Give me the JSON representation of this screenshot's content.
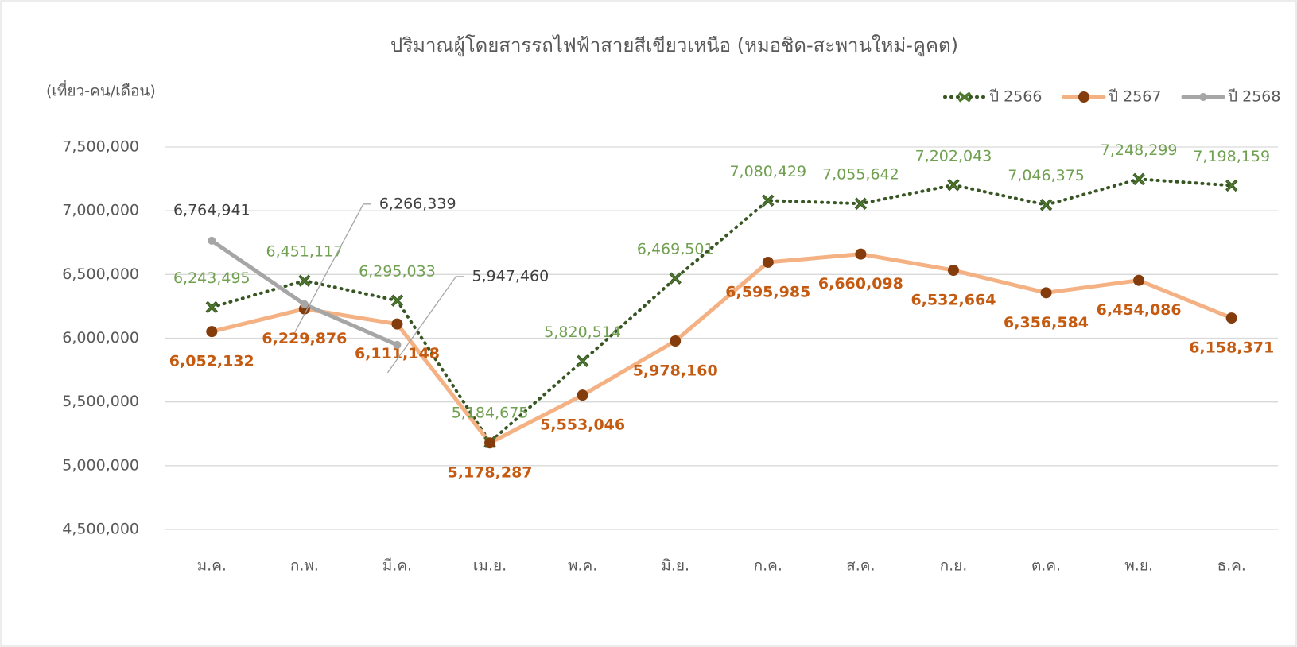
{
  "chart_data": {
    "type": "line",
    "title": "ปริมาณผู้โดยสารรถไฟฟ้าสายสีเขียวเหนือ (หมอชิด-สะพานใหม่-คูคต)",
    "y_label": "(เที่ยว-คน/เดือน)",
    "categories": [
      "ม.ค.",
      "ก.พ.",
      "มี.ค.",
      "เม.ย.",
      "พ.ค.",
      "มิ.ย.",
      "ก.ค.",
      "ส.ค.",
      "ก.ย.",
      "ต.ค.",
      "พ.ย.",
      "ธ.ค."
    ],
    "series": [
      {
        "name": "ปี 2566",
        "color": "#375623",
        "line_style": "dotted",
        "marker": "cross",
        "marker_color": "#4e7a2e",
        "label_color": "#70a050",
        "values": [
          6243495,
          6451117,
          6295033,
          5184675,
          5820514,
          6469501,
          7080429,
          7055642,
          7202043,
          7046375,
          7248299,
          7198159
        ],
        "value_labels": [
          "6,243,495",
          "6,451,117",
          "6,295,033",
          "5,184,675",
          "5,820,514",
          "6,469,501",
          "7,080,429",
          "7,055,642",
          "7,202,043",
          "7,046,375",
          "7,248,299",
          "7,198,159"
        ]
      },
      {
        "name": "ปี 2567",
        "color": "#f4b183",
        "line_style": "solid",
        "marker": "circle",
        "marker_color": "#843c0c",
        "label_color": "#c55a11",
        "values": [
          6052132,
          6229876,
          6111148,
          5178287,
          5553046,
          5978160,
          6595985,
          6660098,
          6532664,
          6356584,
          6454086,
          6158371
        ],
        "value_labels": [
          "6,052,132",
          "6,229,876",
          "6,111,148",
          "5,178,287",
          "5,553,046",
          "5,978,160",
          "6,595,985",
          "6,660,098",
          "6,532,664",
          "6,356,584",
          "6,454,086",
          "6,158,371"
        ]
      },
      {
        "name": "ปี 2568",
        "color": "#a6a6a6",
        "line_style": "solid",
        "marker": "circle",
        "marker_color": "#a6a6a6",
        "label_color": "#404040",
        "values": [
          6764941,
          6266339,
          5947460,
          null,
          null,
          null,
          null,
          null,
          null,
          null,
          null,
          null
        ],
        "value_labels": [
          "6,764,941",
          "6,266,339",
          "5,947,460",
          null,
          null,
          null,
          null,
          null,
          null,
          null,
          null,
          null
        ]
      }
    ],
    "ylim": [
      4500000,
      7500000
    ],
    "yticks": [
      {
        "value": 4500000,
        "label": "4,500,000"
      },
      {
        "value": 5000000,
        "label": "5,000,000"
      },
      {
        "value": 5500000,
        "label": "5,500,000"
      },
      {
        "value": 6000000,
        "label": "6,000,000"
      },
      {
        "value": 6500000,
        "label": "6,500,000"
      },
      {
        "value": 7000000,
        "label": "7,000,000"
      },
      {
        "value": 7500000,
        "label": "7,500,000"
      }
    ],
    "grid": true,
    "legend": "top-right"
  }
}
